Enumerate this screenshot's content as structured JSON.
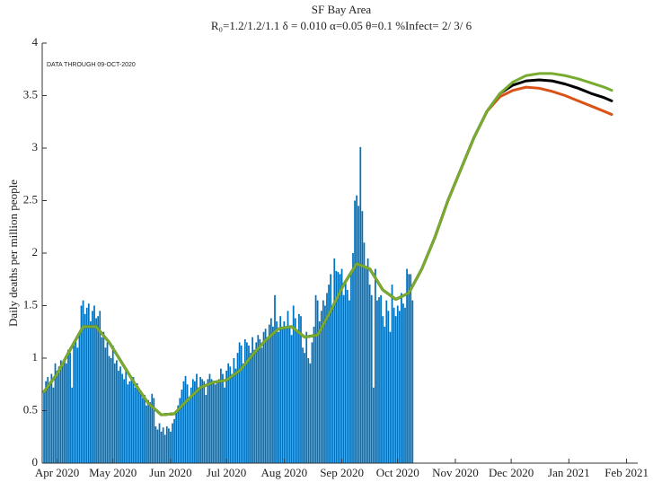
{
  "chart_data": {
    "type": "bar",
    "title": "SF Bay Area",
    "subtitle": "R₀=1.2/1.2/1.1  δ = 0.010  α=0.05  θ=0.1  %Infect= 2/ 3/ 6",
    "annotation": "DATA THROUGH 09-OCT-2020",
    "ylabel": "Daily deaths per million people",
    "ylim": [
      0,
      4
    ],
    "yticks": [
      0,
      0.5,
      1,
      1.5,
      2,
      2.5,
      3,
      3.5,
      4
    ],
    "xlim": [
      -8,
      312
    ],
    "xticks": [
      {
        "value": 0,
        "label": "Apr 2020"
      },
      {
        "value": 30,
        "label": "May 2020"
      },
      {
        "value": 61,
        "label": "Jun 2020"
      },
      {
        "value": 91,
        "label": "Jul 2020"
      },
      {
        "value": 122,
        "label": "Aug 2020"
      },
      {
        "value": 153,
        "label": "Sep 2020"
      },
      {
        "value": 183,
        "label": "Oct 2020"
      },
      {
        "value": 214,
        "label": "Nov 2020"
      },
      {
        "value": 244,
        "label": "Dec 2020"
      },
      {
        "value": 275,
        "label": "Jan 2021"
      },
      {
        "value": 306,
        "label": "Feb 2021"
      }
    ],
    "series": [
      {
        "type": "bar",
        "color": "#0072bd",
        "x": [
          -7,
          -6,
          -5,
          -4,
          -3,
          -2,
          -1,
          0,
          1,
          2,
          3,
          4,
          5,
          6,
          7,
          8,
          9,
          10,
          11,
          12,
          13,
          14,
          15,
          16,
          17,
          18,
          19,
          20,
          21,
          22,
          23,
          24,
          25,
          26,
          27,
          28,
          29,
          30,
          31,
          32,
          33,
          34,
          35,
          36,
          37,
          38,
          39,
          40,
          41,
          42,
          43,
          44,
          45,
          46,
          47,
          48,
          49,
          50,
          51,
          52,
          53,
          54,
          55,
          56,
          57,
          58,
          59,
          60,
          61,
          62,
          63,
          64,
          65,
          66,
          67,
          68,
          69,
          70,
          71,
          72,
          73,
          74,
          75,
          76,
          77,
          78,
          79,
          80,
          81,
          82,
          83,
          84,
          85,
          86,
          87,
          88,
          89,
          90,
          91,
          92,
          93,
          94,
          95,
          96,
          97,
          98,
          99,
          100,
          101,
          102,
          103,
          104,
          105,
          106,
          107,
          108,
          109,
          110,
          111,
          112,
          113,
          114,
          115,
          116,
          117,
          118,
          119,
          120,
          121,
          122,
          123,
          124,
          125,
          126,
          127,
          128,
          129,
          130,
          131,
          132,
          133,
          134,
          135,
          136,
          137,
          138,
          139,
          140,
          141,
          142,
          143,
          144,
          145,
          146,
          147,
          148,
          149,
          150,
          151,
          152,
          153,
          154,
          155,
          156,
          157,
          158,
          159,
          160,
          161,
          162,
          163,
          164,
          165,
          166,
          167,
          168,
          169,
          170,
          171,
          172,
          173,
          174,
          175,
          176,
          177,
          178,
          179,
          180,
          181,
          182,
          183,
          184,
          185,
          186,
          187,
          188,
          189,
          190,
          191
        ],
        "values": [
          0.69,
          0.78,
          0.82,
          0.75,
          0.85,
          0.72,
          0.95,
          0.88,
          0.92,
          0.98,
          0.93,
          1.0,
          0.95,
          1.08,
          1.05,
          0.72,
          1.12,
          1.18,
          1.1,
          1.25,
          1.5,
          1.55,
          1.42,
          1.48,
          1.52,
          1.35,
          1.45,
          1.5,
          1.38,
          1.4,
          1.45,
          1.2,
          1.25,
          1.1,
          1.15,
          1.02,
          1.0,
          1.12,
          0.95,
          0.98,
          0.88,
          0.92,
          0.85,
          0.8,
          0.9,
          0.75,
          0.78,
          0.8,
          0.82,
          0.72,
          0.76,
          0.7,
          0.68,
          0.62,
          0.65,
          0.55,
          0.6,
          0.58,
          0.66,
          0.62,
          0.35,
          0.32,
          0.38,
          0.3,
          0.34,
          0.27,
          0.35,
          0.33,
          0.3,
          0.38,
          0.42,
          0.5,
          0.55,
          0.62,
          0.7,
          0.78,
          0.83,
          0.75,
          0.6,
          0.72,
          0.8,
          0.78,
          0.85,
          0.72,
          0.82,
          0.8,
          0.78,
          0.65,
          0.8,
          0.85,
          0.8,
          0.76,
          0.75,
          0.78,
          0.8,
          0.9,
          0.85,
          0.72,
          0.88,
          0.95,
          0.92,
          0.85,
          1.0,
          0.9,
          1.05,
          1.15,
          1.12,
          0.95,
          1.18,
          1.15,
          1.12,
          1.05,
          1.2,
          1.08,
          1.15,
          1.22,
          1.18,
          1.1,
          1.25,
          1.28,
          1.2,
          1.32,
          1.38,
          1.3,
          1.6,
          1.35,
          1.25,
          1.4,
          1.3,
          1.35,
          1.28,
          1.45,
          1.3,
          1.22,
          1.5,
          1.38,
          1.25,
          1.42,
          1.4,
          1.1,
          1.05,
          1.25,
          1.0,
          0.95,
          1.15,
          1.3,
          1.6,
          1.55,
          1.35,
          1.45,
          1.55,
          1.5,
          1.62,
          1.7,
          1.8,
          1.5,
          1.95,
          1.83,
          1.82,
          1.8,
          1.85,
          1.6,
          1.72,
          1.65,
          1.55,
          1.8,
          2.0,
          2.5,
          2.55,
          2.45,
          3.01,
          2.4,
          2.1,
          1.85,
          1.95,
          1.7,
          1.6,
          0.72,
          1.85,
          1.55,
          1.58,
          1.6,
          1.4,
          1.3,
          1.55,
          1.45,
          1.25,
          1.7,
          1.48,
          1.4,
          1.5,
          1.45,
          1.62,
          1.52,
          1.48,
          1.85,
          1.8,
          1.8,
          1.55
        ]
      },
      {
        "type": "line",
        "color": "#d95319",
        "x": [
          -7,
          0,
          7,
          14,
          21,
          28,
          35,
          42,
          49,
          56,
          63,
          70,
          77,
          84,
          91,
          98,
          105,
          112,
          119,
          126,
          133,
          140,
          147,
          154,
          161,
          168,
          175,
          182,
          189,
          196,
          203,
          210,
          217,
          224,
          231,
          238,
          245,
          252,
          259,
          266,
          273,
          280,
          287,
          294,
          298
        ],
        "values": [
          0.68,
          0.85,
          1.08,
          1.3,
          1.3,
          1.15,
          0.95,
          0.75,
          0.57,
          0.46,
          0.47,
          0.6,
          0.72,
          0.77,
          0.79,
          0.88,
          1.03,
          1.17,
          1.28,
          1.3,
          1.2,
          1.22,
          1.45,
          1.7,
          1.9,
          1.85,
          1.65,
          1.56,
          1.62,
          1.85,
          2.15,
          2.5,
          2.8,
          3.1,
          3.35,
          3.49,
          3.55,
          3.58,
          3.57,
          3.54,
          3.5,
          3.45,
          3.4,
          3.35,
          3.32
        ]
      },
      {
        "type": "line",
        "color": "#000000",
        "x": [
          -7,
          0,
          7,
          14,
          21,
          28,
          35,
          42,
          49,
          56,
          63,
          70,
          77,
          84,
          91,
          98,
          105,
          112,
          119,
          126,
          133,
          140,
          147,
          154,
          161,
          168,
          175,
          182,
          189,
          196,
          203,
          210,
          217,
          224,
          231,
          238,
          245,
          252,
          259,
          266,
          273,
          280,
          287,
          294,
          298
        ],
        "values": [
          0.68,
          0.85,
          1.08,
          1.3,
          1.3,
          1.15,
          0.95,
          0.75,
          0.57,
          0.46,
          0.47,
          0.6,
          0.72,
          0.77,
          0.79,
          0.88,
          1.03,
          1.17,
          1.28,
          1.3,
          1.2,
          1.22,
          1.45,
          1.7,
          1.9,
          1.85,
          1.65,
          1.56,
          1.62,
          1.85,
          2.15,
          2.5,
          2.8,
          3.1,
          3.35,
          3.52,
          3.6,
          3.64,
          3.65,
          3.64,
          3.61,
          3.57,
          3.52,
          3.48,
          3.45
        ]
      },
      {
        "type": "line",
        "color": "#77ac30",
        "x": [
          -7,
          0,
          7,
          14,
          21,
          28,
          35,
          42,
          49,
          56,
          63,
          70,
          77,
          84,
          91,
          98,
          105,
          112,
          119,
          126,
          133,
          140,
          147,
          154,
          161,
          168,
          175,
          182,
          189,
          196,
          203,
          210,
          217,
          224,
          231,
          238,
          245,
          252,
          259,
          266,
          273,
          280,
          287,
          294,
          298
        ],
        "values": [
          0.68,
          0.85,
          1.08,
          1.3,
          1.3,
          1.15,
          0.95,
          0.75,
          0.57,
          0.46,
          0.47,
          0.6,
          0.72,
          0.77,
          0.79,
          0.88,
          1.03,
          1.17,
          1.28,
          1.3,
          1.2,
          1.22,
          1.45,
          1.7,
          1.9,
          1.85,
          1.65,
          1.56,
          1.62,
          1.85,
          2.15,
          2.5,
          2.8,
          3.1,
          3.35,
          3.52,
          3.63,
          3.69,
          3.71,
          3.71,
          3.69,
          3.66,
          3.62,
          3.58,
          3.55
        ]
      }
    ]
  }
}
